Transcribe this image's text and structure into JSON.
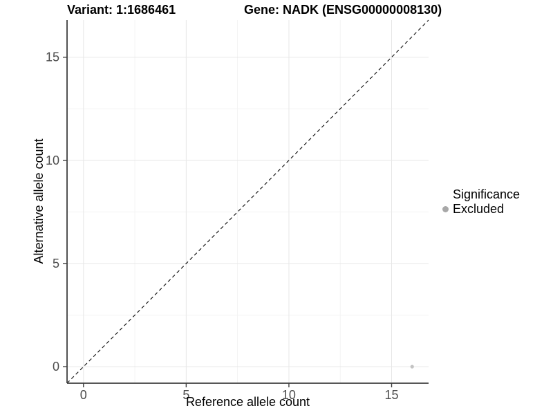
{
  "chart_data": {
    "type": "scatter",
    "title_left": "Variant: 1:1686461",
    "title_right": "Gene: NADK (ENSG00000008130)",
    "xlabel": "Reference allele count",
    "ylabel": "Alternative allele count",
    "xlim": [
      -0.8,
      16.8
    ],
    "ylim": [
      -0.8,
      16.8
    ],
    "xticks": [
      0,
      5,
      10,
      15
    ],
    "yticks": [
      0,
      5,
      10,
      15
    ],
    "minor_ticks": [
      2.5,
      7.5,
      12.5
    ],
    "grid": true,
    "points": [
      {
        "x": 16,
        "y": 0,
        "series": "Excluded"
      }
    ],
    "reference_line": {
      "type": "abline",
      "slope": 1,
      "intercept": 0,
      "style": "dashed"
    },
    "legend": {
      "title": "Significance",
      "position": "right",
      "items": [
        {
          "label": "Excluded",
          "color": "#a8a8a8"
        }
      ]
    },
    "style": {
      "point_color": "#c3c3c3",
      "point_radius": 2.6,
      "legend_key_color": "#a8a8a8",
      "major_grid_color": "#e7e7e7",
      "minor_grid_color": "#f3f3f3",
      "axis_line_color": "#3f3f3f",
      "tick_label_color": "#4d4d4d",
      "reference_line_color": "#1a1a1a",
      "background_color": "#ffffff"
    }
  }
}
